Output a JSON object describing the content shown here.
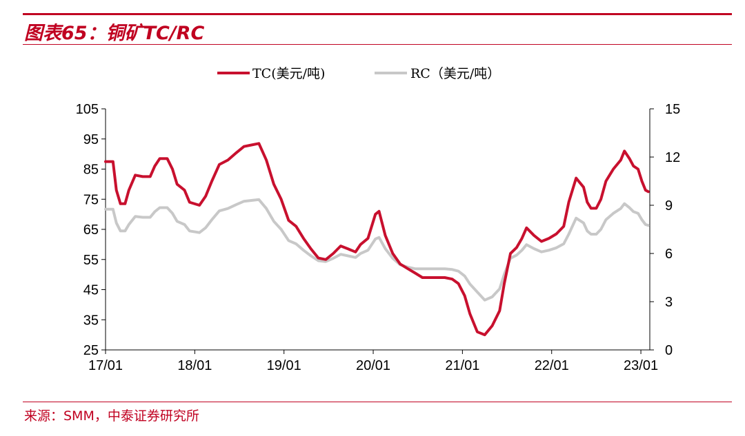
{
  "header": {
    "title": "图表65：铜矿TC/RC"
  },
  "footer": {
    "source": "来源：SMM，中泰证券研究所"
  },
  "colors": {
    "tc": "#c8102e",
    "rc": "#c8c8c8",
    "accent": "#c00020"
  },
  "chart_data": {
    "type": "line",
    "title": "",
    "legend": {
      "position": "top-center",
      "entries": [
        "TC(美元/吨)",
        "RC（美元/吨）"
      ]
    },
    "x_tick_labels": [
      "17/01",
      "18/01",
      "19/01",
      "20/01",
      "21/01",
      "22/01",
      "23/01"
    ],
    "y_left": {
      "range": [
        25,
        105
      ],
      "ticks": [
        25,
        35,
        45,
        55,
        65,
        75,
        85,
        95,
        105
      ]
    },
    "y_right": {
      "range": [
        0,
        15
      ],
      "ticks": [
        0,
        3,
        6,
        9,
        12,
        15
      ]
    },
    "series": [
      {
        "name": "TC(美元/吨)",
        "axis": "left",
        "points": [
          [
            "2017-01-01",
            87.5
          ],
          [
            "2017-02-01",
            87.5
          ],
          [
            "2017-02-15",
            78
          ],
          [
            "2017-03-01",
            73.5
          ],
          [
            "2017-03-20",
            73.5
          ],
          [
            "2017-04-05",
            78
          ],
          [
            "2017-05-01",
            83
          ],
          [
            "2017-06-01",
            82.5
          ],
          [
            "2017-07-01",
            82.5
          ],
          [
            "2017-07-20",
            86
          ],
          [
            "2017-08-10",
            88.5
          ],
          [
            "2017-09-10",
            88.5
          ],
          [
            "2017-10-01",
            85
          ],
          [
            "2017-10-20",
            80
          ],
          [
            "2017-11-20",
            78
          ],
          [
            "2017-12-10",
            74
          ],
          [
            "2018-01-20",
            73
          ],
          [
            "2018-02-15",
            76
          ],
          [
            "2018-03-10",
            81
          ],
          [
            "2018-04-10",
            86.5
          ],
          [
            "2018-05-15",
            88
          ],
          [
            "2018-06-20",
            90.5
          ],
          [
            "2018-07-20",
            92.5
          ],
          [
            "2018-08-20",
            93
          ],
          [
            "2018-09-20",
            93.5
          ],
          [
            "2018-10-20",
            88
          ],
          [
            "2018-11-20",
            80
          ],
          [
            "2018-12-20",
            75
          ],
          [
            "2019-01-20",
            68
          ],
          [
            "2019-02-20",
            66
          ],
          [
            "2019-03-20",
            62
          ],
          [
            "2019-04-20",
            58.5
          ],
          [
            "2019-05-20",
            55.5
          ],
          [
            "2019-06-20",
            55
          ],
          [
            "2019-07-20",
            57
          ],
          [
            "2019-08-20",
            59.5
          ],
          [
            "2019-09-20",
            58.5
          ],
          [
            "2019-10-20",
            57.5
          ],
          [
            "2019-11-10",
            60
          ],
          [
            "2019-12-10",
            62
          ],
          [
            "2020-01-10",
            70
          ],
          [
            "2020-01-25",
            71
          ],
          [
            "2020-02-20",
            63
          ],
          [
            "2020-03-20",
            57
          ],
          [
            "2020-04-20",
            53.5
          ],
          [
            "2020-05-20",
            52
          ],
          [
            "2020-06-20",
            50.5
          ],
          [
            "2020-07-20",
            49
          ],
          [
            "2020-08-20",
            49
          ],
          [
            "2020-09-20",
            49
          ],
          [
            "2020-10-20",
            49
          ],
          [
            "2020-11-20",
            48.5
          ],
          [
            "2020-12-15",
            47
          ],
          [
            "2021-01-10",
            43
          ],
          [
            "2021-02-01",
            37
          ],
          [
            "2021-03-01",
            31
          ],
          [
            "2021-04-01",
            30
          ],
          [
            "2021-05-01",
            33
          ],
          [
            "2021-06-01",
            38
          ],
          [
            "2021-06-20",
            47
          ],
          [
            "2021-07-15",
            57
          ],
          [
            "2021-08-10",
            59
          ],
          [
            "2021-09-01",
            62
          ],
          [
            "2021-09-20",
            65.5
          ],
          [
            "2021-10-20",
            63
          ],
          [
            "2021-11-20",
            61
          ],
          [
            "2021-12-20",
            62
          ],
          [
            "2022-01-20",
            63.5
          ],
          [
            "2022-02-20",
            66
          ],
          [
            "2022-03-10",
            74
          ],
          [
            "2022-04-10",
            82
          ],
          [
            "2022-05-10",
            79
          ],
          [
            "2022-05-25",
            74
          ],
          [
            "2022-06-10",
            72
          ],
          [
            "2022-07-01",
            72
          ],
          [
            "2022-07-20",
            75
          ],
          [
            "2022-08-10",
            81
          ],
          [
            "2022-09-10",
            85
          ],
          [
            "2022-10-10",
            88
          ],
          [
            "2022-10-25",
            91
          ],
          [
            "2022-11-15",
            88.5
          ],
          [
            "2022-12-01",
            86
          ],
          [
            "2022-12-20",
            85
          ],
          [
            "2023-01-05",
            81
          ],
          [
            "2023-01-20",
            78
          ],
          [
            "2023-02-01",
            77.5
          ]
        ]
      },
      {
        "name": "RC（美元/吨）",
        "axis": "right",
        "points": [
          [
            "2017-01-01",
            8.75
          ],
          [
            "2017-02-01",
            8.75
          ],
          [
            "2017-02-15",
            7.9
          ],
          [
            "2017-03-01",
            7.4
          ],
          [
            "2017-03-20",
            7.4
          ],
          [
            "2017-04-05",
            7.8
          ],
          [
            "2017-05-01",
            8.3
          ],
          [
            "2017-06-01",
            8.25
          ],
          [
            "2017-07-01",
            8.25
          ],
          [
            "2017-07-20",
            8.6
          ],
          [
            "2017-08-10",
            8.85
          ],
          [
            "2017-09-10",
            8.85
          ],
          [
            "2017-10-01",
            8.5
          ],
          [
            "2017-10-20",
            8.0
          ],
          [
            "2017-11-20",
            7.8
          ],
          [
            "2017-12-10",
            7.4
          ],
          [
            "2018-01-20",
            7.3
          ],
          [
            "2018-02-15",
            7.6
          ],
          [
            "2018-03-10",
            8.1
          ],
          [
            "2018-04-10",
            8.65
          ],
          [
            "2018-05-15",
            8.8
          ],
          [
            "2018-06-20",
            9.05
          ],
          [
            "2018-07-20",
            9.25
          ],
          [
            "2018-08-20",
            9.3
          ],
          [
            "2018-09-20",
            9.35
          ],
          [
            "2018-10-20",
            8.8
          ],
          [
            "2018-11-20",
            8.0
          ],
          [
            "2018-12-20",
            7.5
          ],
          [
            "2019-01-20",
            6.8
          ],
          [
            "2019-02-20",
            6.6
          ],
          [
            "2019-03-20",
            6.2
          ],
          [
            "2019-04-20",
            5.85
          ],
          [
            "2019-05-20",
            5.55
          ],
          [
            "2019-06-20",
            5.5
          ],
          [
            "2019-07-20",
            5.7
          ],
          [
            "2019-08-20",
            5.95
          ],
          [
            "2019-09-20",
            5.85
          ],
          [
            "2019-10-20",
            5.75
          ],
          [
            "2019-11-10",
            6.0
          ],
          [
            "2019-12-10",
            6.2
          ],
          [
            "2020-01-10",
            6.9
          ],
          [
            "2020-01-25",
            7.0
          ],
          [
            "2020-02-20",
            6.3
          ],
          [
            "2020-03-20",
            5.7
          ],
          [
            "2020-04-20",
            5.3
          ],
          [
            "2020-05-20",
            5.15
          ],
          [
            "2020-06-20",
            5.05
          ],
          [
            "2020-07-20",
            5.05
          ],
          [
            "2020-08-20",
            5.05
          ],
          [
            "2020-09-20",
            5.05
          ],
          [
            "2020-10-20",
            5.05
          ],
          [
            "2020-11-20",
            5.0
          ],
          [
            "2020-12-15",
            4.9
          ],
          [
            "2021-01-10",
            4.6
          ],
          [
            "2021-02-01",
            4.1
          ],
          [
            "2021-03-01",
            3.6
          ],
          [
            "2021-04-01",
            3.1
          ],
          [
            "2021-05-01",
            3.3
          ],
          [
            "2021-06-01",
            3.8
          ],
          [
            "2021-06-20",
            4.7
          ],
          [
            "2021-07-15",
            5.7
          ],
          [
            "2021-08-10",
            5.9
          ],
          [
            "2021-09-01",
            6.2
          ],
          [
            "2021-09-20",
            6.55
          ],
          [
            "2021-10-20",
            6.3
          ],
          [
            "2021-11-20",
            6.1
          ],
          [
            "2021-12-20",
            6.2
          ],
          [
            "2022-01-20",
            6.35
          ],
          [
            "2022-02-20",
            6.6
          ],
          [
            "2022-03-10",
            7.2
          ],
          [
            "2022-04-10",
            8.2
          ],
          [
            "2022-05-10",
            7.9
          ],
          [
            "2022-05-25",
            7.4
          ],
          [
            "2022-06-10",
            7.2
          ],
          [
            "2022-07-01",
            7.2
          ],
          [
            "2022-07-20",
            7.5
          ],
          [
            "2022-08-10",
            8.1
          ],
          [
            "2022-09-10",
            8.5
          ],
          [
            "2022-10-10",
            8.8
          ],
          [
            "2022-10-25",
            9.1
          ],
          [
            "2022-11-15",
            8.85
          ],
          [
            "2022-12-01",
            8.6
          ],
          [
            "2022-12-20",
            8.5
          ],
          [
            "2023-01-05",
            8.1
          ],
          [
            "2023-01-20",
            7.8
          ],
          [
            "2023-02-01",
            7.75
          ]
        ]
      }
    ]
  }
}
